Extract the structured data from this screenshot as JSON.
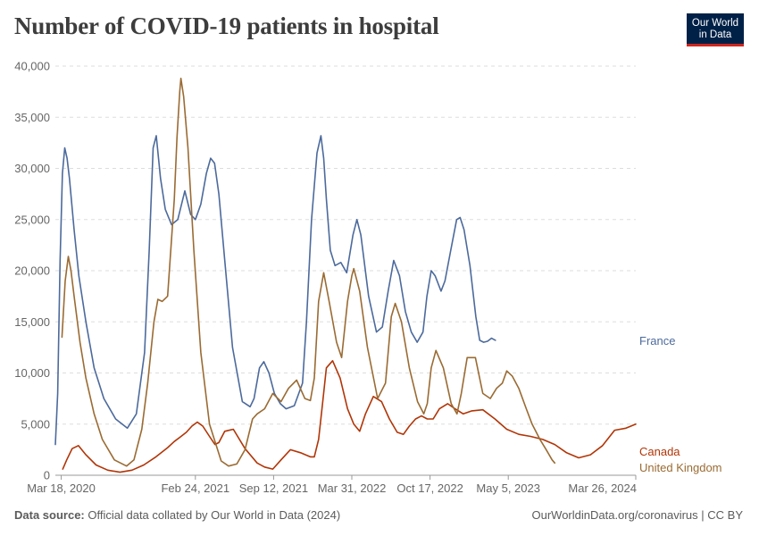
{
  "title": "Number of COVID-19 patients in hospital",
  "logo": {
    "line1": "Our World",
    "line2": "in Data"
  },
  "footer": {
    "source_label": "Data source:",
    "source_text": "Official data collated by Our World in Data (2024)",
    "link_text": "OurWorldinData.org/coronavirus",
    "license": "| CC BY"
  },
  "colors": {
    "France": "#4c6a9c",
    "Canada": "#b13507",
    "United Kingdom": "#9a6b33",
    "grid": "#dddddd",
    "axis_text": "#666666"
  },
  "chart_data": {
    "type": "line",
    "title": "Number of COVID-19 patients in hospital",
    "xlabel": "",
    "ylabel": "",
    "ylim": [
      0,
      40000
    ],
    "yticks": [
      0,
      5000,
      10000,
      15000,
      20000,
      25000,
      30000,
      35000,
      40000
    ],
    "ytick_labels": [
      "0",
      "5,000",
      "10,000",
      "15,000",
      "20,000",
      "25,000",
      "30,000",
      "35,000",
      "40,000"
    ],
    "xlim": [
      "2020-03-03",
      "2024-03-26"
    ],
    "xticks": [
      "2020-03-18",
      "2021-02-24",
      "2021-09-12",
      "2022-03-31",
      "2022-10-17",
      "2023-05-05",
      "2024-03-26"
    ],
    "xtick_labels": [
      "Mar 18, 2020",
      "Feb 24, 2021",
      "Sep 12, 2021",
      "Mar 31, 2022",
      "Oct 17, 2022",
      "May 5, 2023",
      "Mar 26, 2024"
    ],
    "grid": "horizontal dashed",
    "legend": "right, end-of-line labels",
    "series": [
      {
        "name": "France",
        "x": [
          "2020-03-03",
          "2020-03-09",
          "2020-03-15",
          "2020-03-21",
          "2020-03-27",
          "2020-04-02",
          "2020-04-08",
          "2020-04-14",
          "2020-04-20",
          "2020-05-02",
          "2020-05-20",
          "2020-06-10",
          "2020-07-05",
          "2020-08-04",
          "2020-09-03",
          "2020-09-26",
          "2020-10-17",
          "2020-10-29",
          "2020-11-08",
          "2020-11-16",
          "2020-11-27",
          "2020-12-09",
          "2020-12-25",
          "2021-01-10",
          "2021-01-28",
          "2021-02-12",
          "2021-02-24",
          "2021-03-10",
          "2021-03-24",
          "2021-04-04",
          "2021-04-14",
          "2021-04-25",
          "2021-05-10",
          "2021-05-30",
          "2021-06-24",
          "2021-07-14",
          "2021-07-24",
          "2021-08-07",
          "2021-08-18",
          "2021-08-31",
          "2021-09-14",
          "2021-09-29",
          "2021-10-14",
          "2021-11-04",
          "2021-11-25",
          "2021-12-05",
          "2021-12-18",
          "2022-01-01",
          "2022-01-11",
          "2022-01-18",
          "2022-01-25",
          "2022-02-04",
          "2022-02-16",
          "2022-03-03",
          "2022-03-18",
          "2022-04-03",
          "2022-04-13",
          "2022-04-23",
          "2022-05-13",
          "2022-06-02",
          "2022-06-17",
          "2022-07-02",
          "2022-07-16",
          "2022-07-31",
          "2022-08-15",
          "2022-08-30",
          "2022-09-14",
          "2022-09-29",
          "2022-10-09",
          "2022-10-20",
          "2022-10-30",
          "2022-11-14",
          "2022-11-24",
          "2022-12-09",
          "2022-12-24",
          "2023-01-02",
          "2023-01-12",
          "2023-01-27",
          "2023-02-11",
          "2023-02-21",
          "2023-03-03",
          "2023-03-13",
          "2023-03-23",
          "2023-04-02"
        ],
        "y": [
          3000,
          8000,
          21000,
          29500,
          32000,
          31000,
          29000,
          26500,
          24000,
          19500,
          15000,
          10500,
          7500,
          5500,
          4600,
          6000,
          12000,
          22000,
          32000,
          33200,
          29000,
          26000,
          24500,
          25000,
          27800,
          25500,
          25000,
          26500,
          29500,
          31000,
          30500,
          27500,
          21000,
          12500,
          7200,
          6700,
          7500,
          10500,
          11100,
          10000,
          8000,
          7000,
          6500,
          6800,
          9000,
          15000,
          25000,
          31500,
          33200,
          31000,
          27000,
          22000,
          20500,
          20800,
          19800,
          23500,
          25000,
          23500,
          17500,
          14000,
          14500,
          18000,
          21000,
          19500,
          16000,
          14000,
          13000,
          14000,
          17500,
          20000,
          19500,
          18000,
          19000,
          22000,
          25000,
          25200,
          24000,
          20500,
          15500,
          13200,
          13000,
          13100,
          13400,
          13200
        ]
      },
      {
        "name": "Canada",
        "x": [
          "2020-03-22",
          "2020-04-01",
          "2020-04-15",
          "2020-05-01",
          "2020-05-20",
          "2020-06-15",
          "2020-07-15",
          "2020-08-15",
          "2020-09-15",
          "2020-10-15",
          "2020-11-15",
          "2020-12-15",
          "2021-01-01",
          "2021-01-15",
          "2021-02-01",
          "2021-02-15",
          "2021-03-01",
          "2021-03-15",
          "2021-04-01",
          "2021-04-15",
          "2021-04-25",
          "2021-05-10",
          "2021-06-01",
          "2021-07-01",
          "2021-08-01",
          "2021-08-20",
          "2021-09-10",
          "2021-10-01",
          "2021-10-25",
          "2021-11-20",
          "2021-12-15",
          "2021-12-25",
          "2022-01-05",
          "2022-01-15",
          "2022-01-25",
          "2022-02-10",
          "2022-03-01",
          "2022-03-20",
          "2022-04-05",
          "2022-04-20",
          "2022-05-05",
          "2022-05-25",
          "2022-06-15",
          "2022-07-05",
          "2022-07-25",
          "2022-08-10",
          "2022-08-25",
          "2022-09-10",
          "2022-09-25",
          "2022-10-10",
          "2022-10-25",
          "2022-11-10",
          "2022-12-01",
          "2022-12-20",
          "2023-01-10",
          "2023-02-01",
          "2023-03-01",
          "2023-04-01",
          "2023-05-01",
          "2023-06-01",
          "2023-07-01",
          "2023-08-01",
          "2023-09-01",
          "2023-10-01",
          "2023-11-01",
          "2023-12-01",
          "2024-01-01",
          "2024-02-01",
          "2024-03-01",
          "2024-03-26"
        ],
        "y": [
          600,
          1500,
          2600,
          2900,
          2000,
          1000,
          500,
          300,
          500,
          1000,
          1800,
          2700,
          3300,
          3700,
          4200,
          4800,
          5200,
          4800,
          3800,
          3000,
          3200,
          4300,
          4500,
          2600,
          1200,
          800,
          600,
          1500,
          2500,
          2200,
          1800,
          1800,
          3500,
          7000,
          10500,
          11200,
          9500,
          6500,
          5000,
          4300,
          6000,
          7700,
          7200,
          5500,
          4200,
          4000,
          4800,
          5500,
          5800,
          5500,
          5500,
          6500,
          7000,
          6500,
          6000,
          6300,
          6400,
          5500,
          4500,
          4000,
          3800,
          3500,
          3000,
          2200,
          1700,
          2000,
          2900,
          4400,
          4600,
          5000
        ]
      },
      {
        "name": "United Kingdom",
        "x": [
          "2020-03-20",
          "2020-03-28",
          "2020-04-05",
          "2020-04-12",
          "2020-04-20",
          "2020-05-05",
          "2020-05-20",
          "2020-06-10",
          "2020-07-01",
          "2020-08-01",
          "2020-09-01",
          "2020-09-20",
          "2020-10-10",
          "2020-10-25",
          "2020-11-10",
          "2020-11-20",
          "2020-12-01",
          "2020-12-15",
          "2021-01-01",
          "2021-01-08",
          "2021-01-15",
          "2021-01-18",
          "2021-01-25",
          "2021-02-05",
          "2021-02-20",
          "2021-03-10",
          "2021-04-01",
          "2021-05-01",
          "2021-05-20",
          "2021-06-10",
          "2021-07-01",
          "2021-07-20",
          "2021-08-01",
          "2021-08-20",
          "2021-09-10",
          "2021-10-01",
          "2021-10-20",
          "2021-11-10",
          "2021-12-01",
          "2021-12-15",
          "2021-12-25",
          "2022-01-05",
          "2022-01-18",
          "2022-02-01",
          "2022-02-20",
          "2022-03-05",
          "2022-03-20",
          "2022-03-31",
          "2022-04-05",
          "2022-04-20",
          "2022-05-10",
          "2022-06-05",
          "2022-06-25",
          "2022-07-10",
          "2022-07-20",
          "2022-08-05",
          "2022-08-25",
          "2022-09-15",
          "2022-10-01",
          "2022-10-10",
          "2022-10-20",
          "2022-11-01",
          "2022-11-20",
          "2022-12-10",
          "2022-12-25",
          "2023-01-05",
          "2023-01-20",
          "2023-02-10",
          "2023-03-01",
          "2023-03-20",
          "2023-04-05",
          "2023-04-20",
          "2023-05-01",
          "2023-05-15",
          "2023-06-01",
          "2023-06-20",
          "2023-07-05",
          "2023-07-25",
          "2023-08-10",
          "2023-08-25",
          "2023-09-01"
        ],
        "y": [
          13500,
          19000,
          21400,
          20000,
          17500,
          13000,
          9500,
          6000,
          3500,
          1500,
          900,
          1500,
          4500,
          9000,
          15000,
          17200,
          17000,
          17500,
          27000,
          33000,
          37500,
          38800,
          37000,
          32000,
          22000,
          12000,
          5000,
          1400,
          900,
          1100,
          2500,
          5500,
          6000,
          6500,
          8000,
          7200,
          8500,
          9300,
          7500,
          7300,
          9500,
          17000,
          19800,
          17000,
          13000,
          11500,
          17000,
          19500,
          20200,
          18000,
          12500,
          7500,
          9000,
          15500,
          16800,
          15000,
          10500,
          7200,
          6000,
          7000,
          10500,
          12200,
          10500,
          7000,
          6000,
          8000,
          11500,
          11500,
          8000,
          7500,
          8500,
          9000,
          10200,
          9700,
          8500,
          6500,
          5000,
          3500,
          2500,
          1500,
          1200
        ]
      }
    ]
  }
}
